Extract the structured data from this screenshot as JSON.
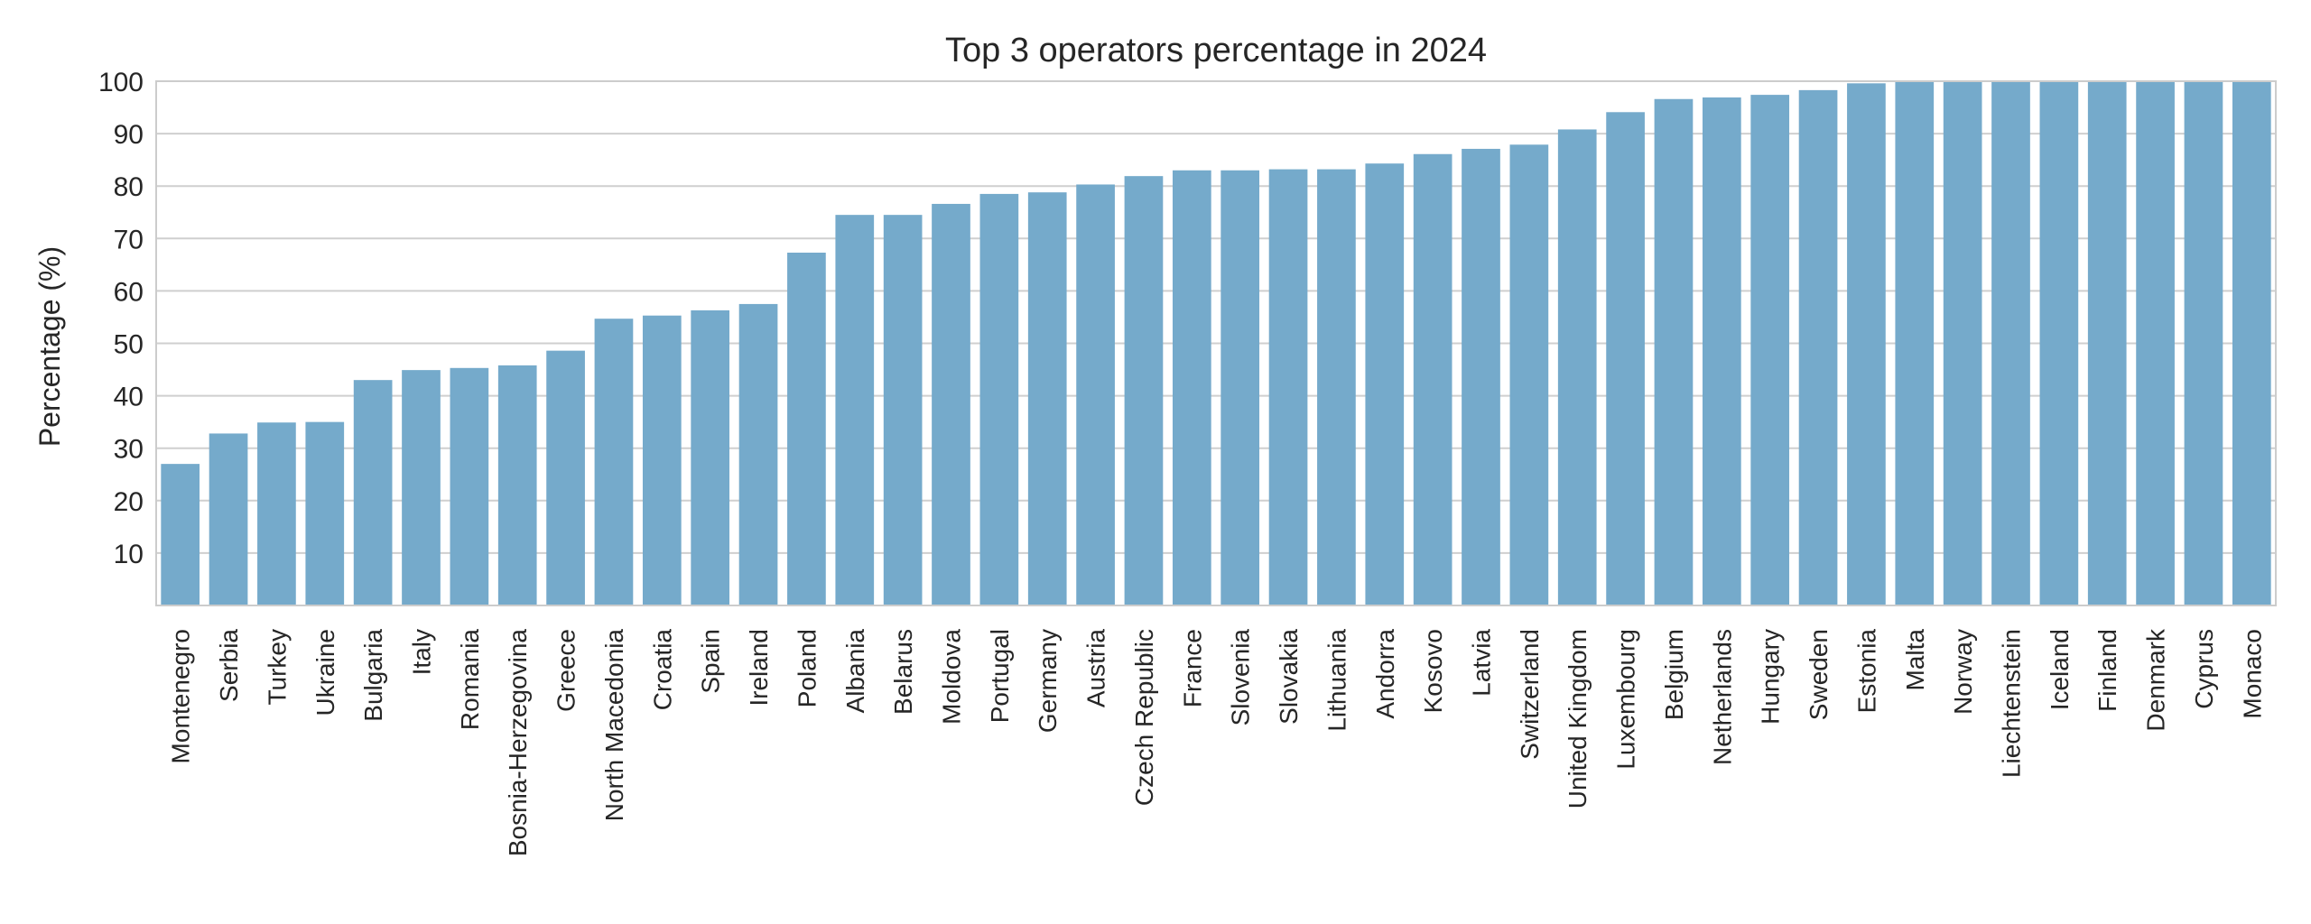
{
  "chart_data": {
    "type": "bar",
    "title": "Top 3 operators percentage in 2024",
    "xlabel": "",
    "ylabel": "Percentage (%)",
    "ylim": [
      0,
      100
    ],
    "yticks": [
      10,
      20,
      30,
      40,
      50,
      60,
      70,
      80,
      90,
      100
    ],
    "grid": "horizontal",
    "bar_color": "#75aacb",
    "categories": [
      "Montenegro",
      "Serbia",
      "Turkey",
      "Ukraine",
      "Bulgaria",
      "Italy",
      "Romania",
      "Bosnia-Herzegovina",
      "Greece",
      "North Macedonia",
      "Croatia",
      "Spain",
      "Ireland",
      "Poland",
      "Albania",
      "Belarus",
      "Moldova",
      "Portugal",
      "Germany",
      "Austria",
      "Czech Republic",
      "France",
      "Slovenia",
      "Slovakia",
      "Lithuania",
      "Andorra",
      "Kosovo",
      "Latvia",
      "Switzerland",
      "United Kingdom",
      "Luxembourg",
      "Belgium",
      "Netherlands",
      "Hungary",
      "Sweden",
      "Estonia",
      "Malta",
      "Norway",
      "Liechtenstein",
      "Iceland",
      "Finland",
      "Denmark",
      "Cyprus",
      "Monaco"
    ],
    "values": [
      27,
      32.8,
      34.9,
      35,
      43,
      44.9,
      45.3,
      45.8,
      48.6,
      54.7,
      55.3,
      56.3,
      57.5,
      67.3,
      74.5,
      74.5,
      76.6,
      78.5,
      78.8,
      80.3,
      81.9,
      83,
      83,
      83.2,
      83.2,
      84.3,
      86.1,
      87.1,
      87.9,
      90.8,
      94.1,
      96.6,
      96.9,
      97.4,
      98.3,
      99.6,
      100,
      100,
      100,
      100,
      100,
      100,
      100,
      100
    ]
  }
}
